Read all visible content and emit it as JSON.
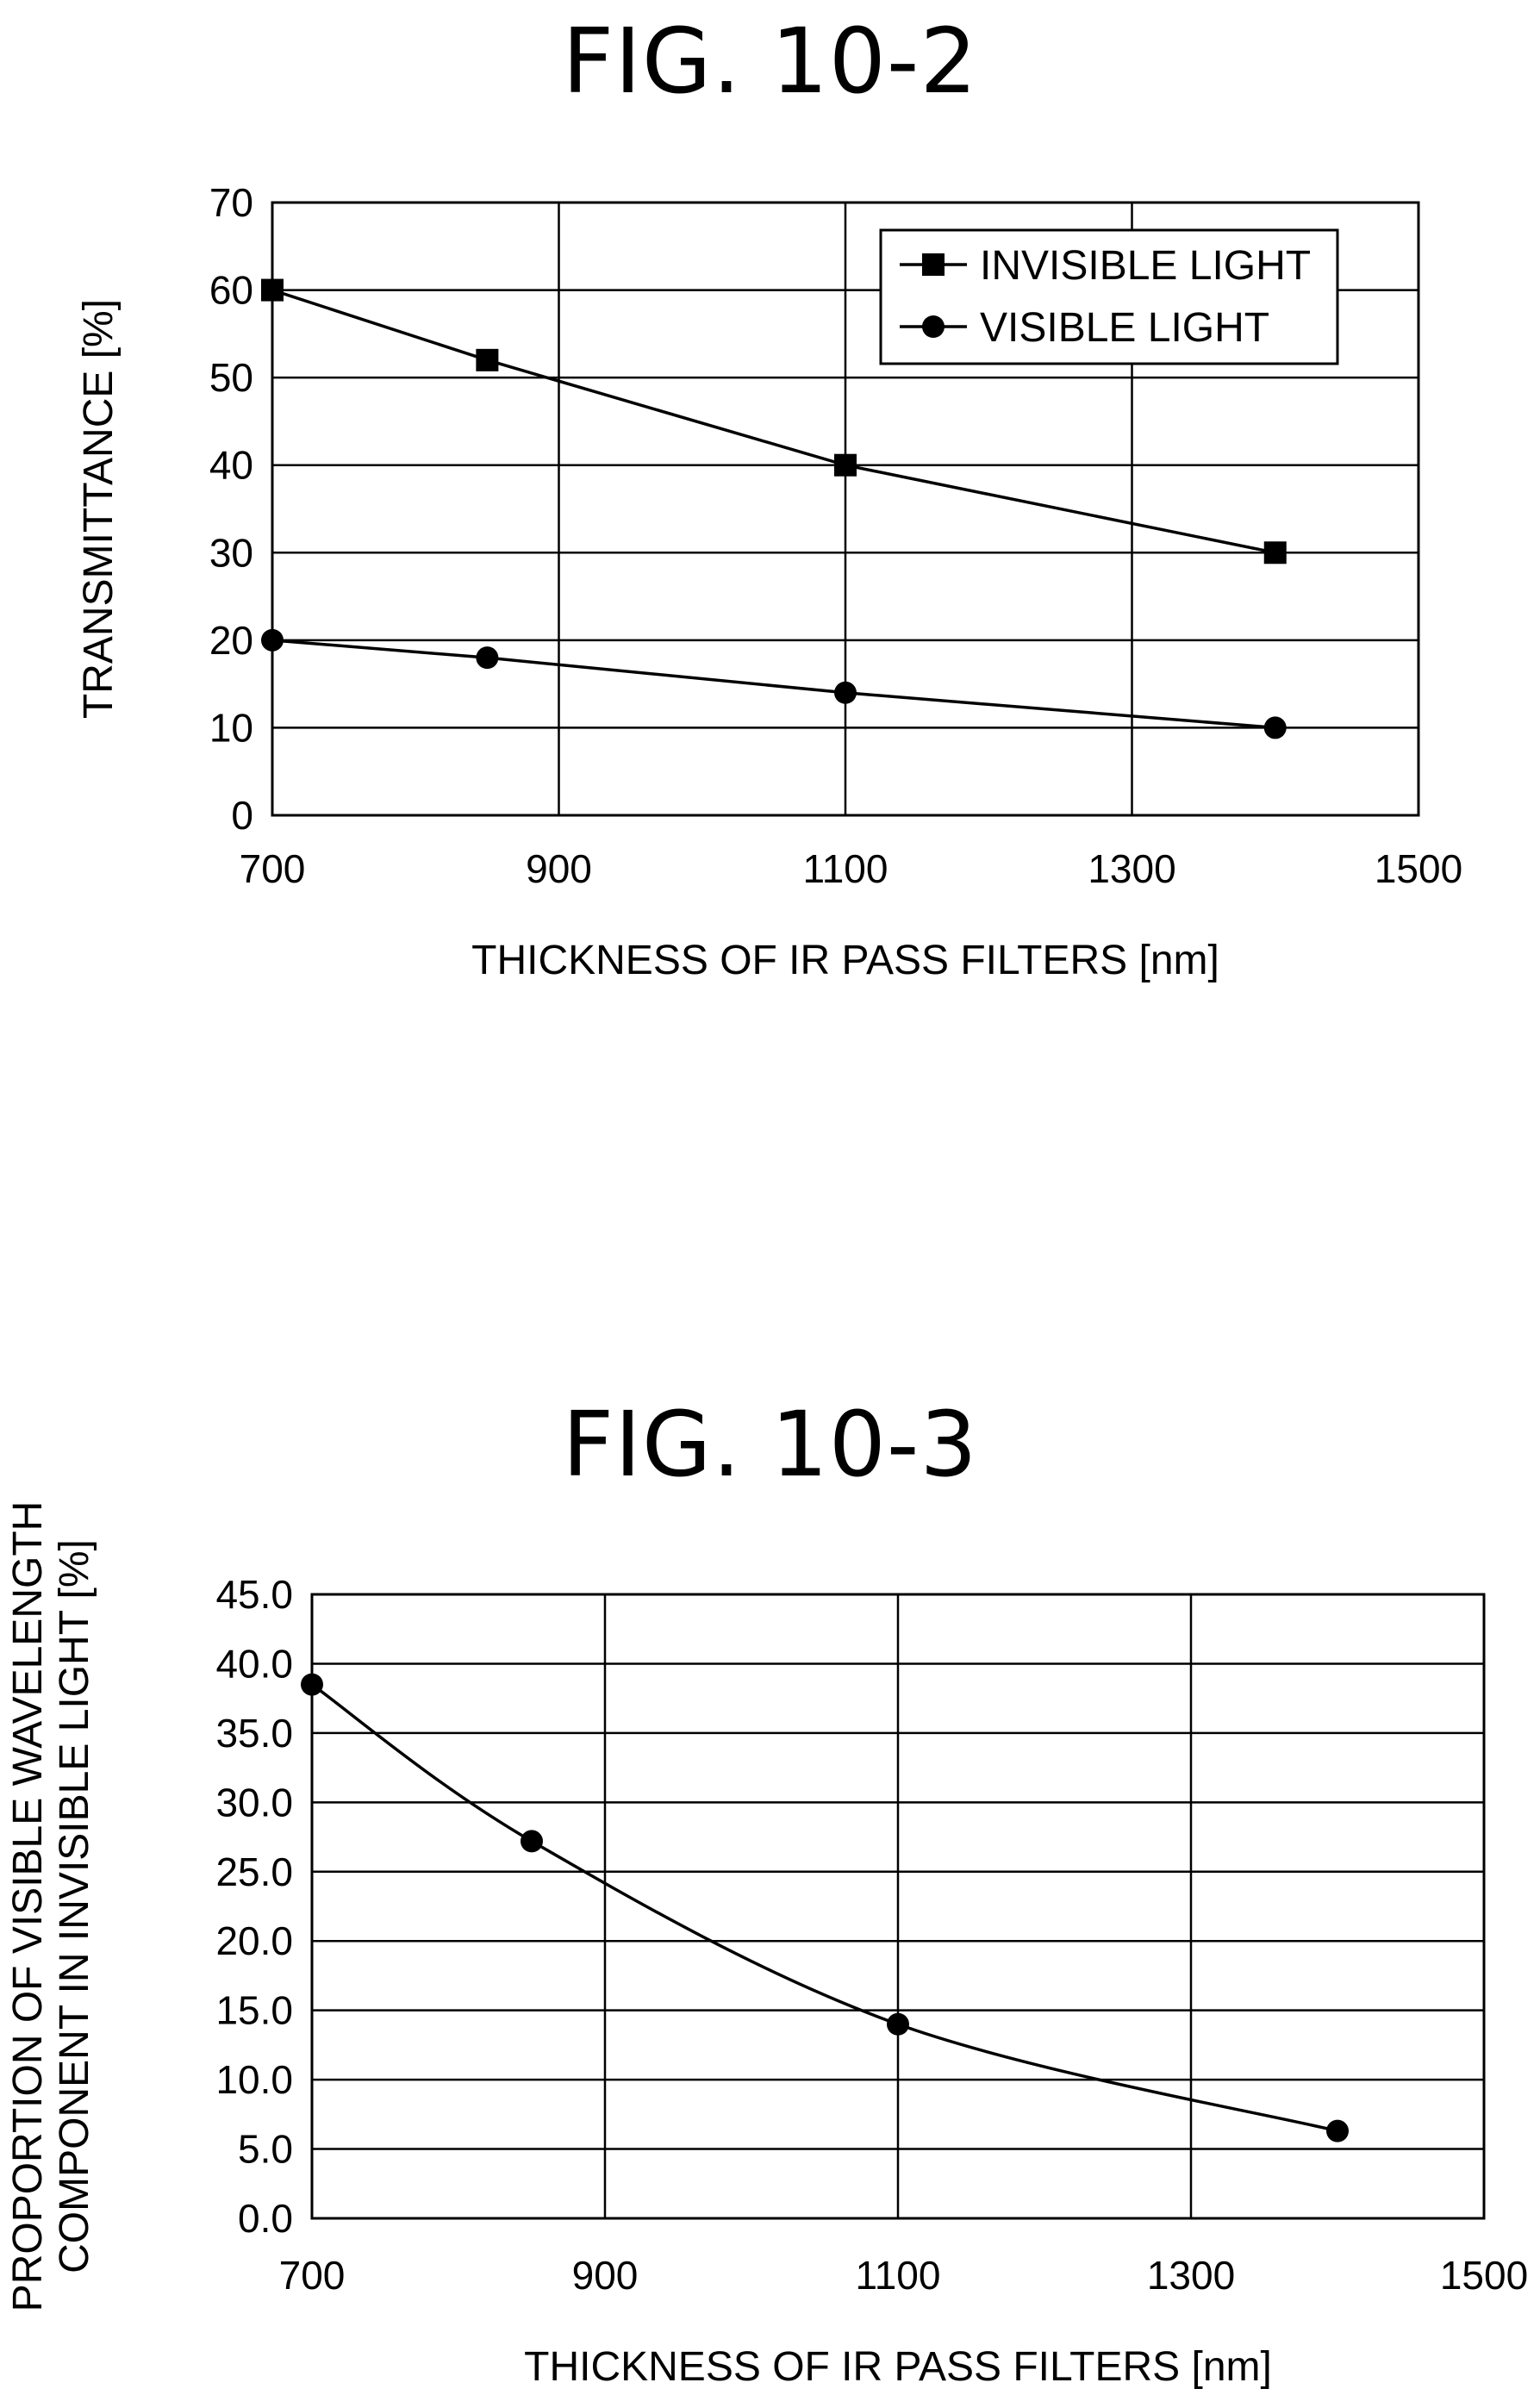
{
  "chart_data": [
    {
      "type": "line",
      "title": "FIG. 10-2",
      "xlabel": "THICKNESS OF IR PASS FILTERS [nm]",
      "ylabel": "TRANSMITTANCE [%]",
      "xlim": [
        700,
        1500
      ],
      "ylim": [
        0,
        70
      ],
      "x_ticks": [
        "700",
        "900",
        "1100",
        "1300",
        "1500"
      ],
      "y_ticks": [
        "0",
        "10",
        "20",
        "30",
        "40",
        "50",
        "60",
        "70"
      ],
      "grid": true,
      "legend_position": "top-right",
      "series": [
        {
          "name": "INVISIBLE LIGHT",
          "marker": "square",
          "x": [
            700,
            850,
            1100,
            1400
          ],
          "values": [
            60,
            52,
            40,
            30
          ]
        },
        {
          "name": "VISIBLE LIGHT",
          "marker": "circle",
          "x": [
            700,
            850,
            1100,
            1400
          ],
          "values": [
            20,
            18,
            14,
            10
          ]
        }
      ]
    },
    {
      "type": "line",
      "title": "FIG. 10-3",
      "xlabel": "THICKNESS OF IR PASS FILTERS [nm]",
      "ylabel": [
        "PROPORTION OF VISIBLE WAVELENGTH",
        "COMPONENT IN INVISIBLE LIGHT [%]"
      ],
      "xlim": [
        700,
        1500
      ],
      "ylim": [
        0,
        45
      ],
      "x_ticks": [
        "700",
        "900",
        "1100",
        "1300",
        "1500"
      ],
      "y_ticks": [
        "0.0",
        "5.0",
        "10.0",
        "15.0",
        "20.0",
        "25.0",
        "30.0",
        "35.0",
        "40.0",
        "45.0"
      ],
      "grid": true,
      "smooth": true,
      "series": [
        {
          "marker": "circle",
          "x": [
            700,
            850,
            1100,
            1400
          ],
          "values": [
            38.5,
            27.2,
            14.0,
            6.3
          ]
        }
      ]
    }
  ]
}
